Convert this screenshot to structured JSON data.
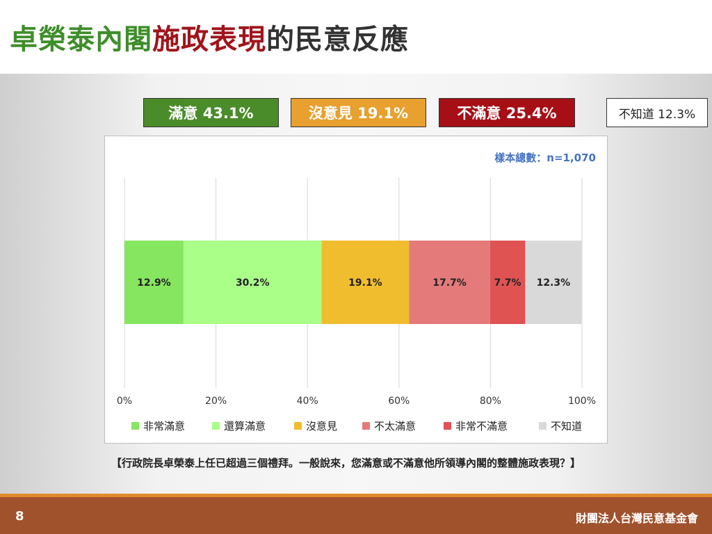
{
  "title": {
    "part1": "卓榮泰內閣",
    "part2": "施政表現",
    "part3": "的民意反應"
  },
  "summary": {
    "satisfied": "滿意 43.1%",
    "neutral": "沒意見 19.1%",
    "dissatisfied": "不滿意 25.4%",
    "unknown": "不知道 12.3%",
    "colors": {
      "satisfied": "#4a8c2a",
      "neutral": "#e8a02e",
      "dissatisfied": "#a50f15"
    }
  },
  "sample_note": "樣本總數：n=1,070",
  "chart_data": {
    "type": "bar",
    "orientation": "horizontal",
    "stacked": true,
    "xlim": [
      0,
      100
    ],
    "ticks": [
      "0%",
      "20%",
      "40%",
      "60%",
      "80%",
      "100%"
    ],
    "tick_values": [
      0,
      20,
      40,
      60,
      80,
      100
    ],
    "grid": true,
    "legend_position": "bottom",
    "series": [
      {
        "name": "非常滿意",
        "value": 12.9,
        "label": "12.9%",
        "color": "#86e65f"
      },
      {
        "name": "還算滿意",
        "value": 30.2,
        "label": "30.2%",
        "color": "#aaff88"
      },
      {
        "name": "沒意見",
        "value": 19.1,
        "label": "19.1%",
        "color": "#f0bd2e"
      },
      {
        "name": "不太滿意",
        "value": 17.7,
        "label": "17.7%",
        "color": "#e57a7a"
      },
      {
        "name": "非常不滿意",
        "value": 7.7,
        "label": "7.7%",
        "color": "#e05353"
      },
      {
        "name": "不知道",
        "value": 12.3,
        "label": "12.3%",
        "color": "#d9d9d9"
      }
    ]
  },
  "question": "【行政院長卓榮泰上任已超過三個禮拜。一般說來，您滿意或不滿意他所領導內閣的整體施政表現？】",
  "footer": {
    "page_number": "8",
    "organization": "財團法人台灣民意基金會"
  }
}
